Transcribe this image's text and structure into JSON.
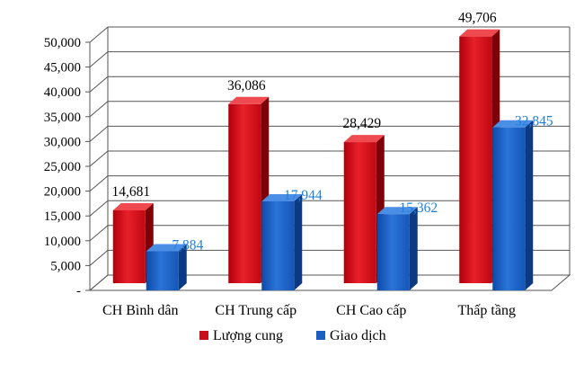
{
  "chart_data": {
    "type": "bar",
    "title": "",
    "xlabel": "",
    "ylabel": "",
    "ylim": [
      0,
      50000
    ],
    "y_ticks": [
      "-",
      "5,000",
      "10,000",
      "15,000",
      "20,000",
      "25,000",
      "30,000",
      "35,000",
      "40,000",
      "45,000",
      "50,000"
    ],
    "categories": [
      "CH Bình dân",
      "CH Trung cấp",
      "CH Cao cấp",
      "Thấp tầng"
    ],
    "series": [
      {
        "name": "Lượng cung",
        "values": [
          14681,
          36086,
          28429,
          49706
        ],
        "labels": [
          "14,681",
          "36,086",
          "28,429",
          "49,706"
        ],
        "color": "#c8101a",
        "label_color": "#000000"
      },
      {
        "name": "Giao dịch",
        "values": [
          7884,
          17944,
          15362,
          32845
        ],
        "labels": [
          "7,884",
          "17,944",
          "15,362",
          "32,845"
        ],
        "color": "#1a5fc0",
        "label_color": "#1f7fd8"
      }
    ],
    "grid": true,
    "style": "3d",
    "legend_position": "bottom"
  }
}
